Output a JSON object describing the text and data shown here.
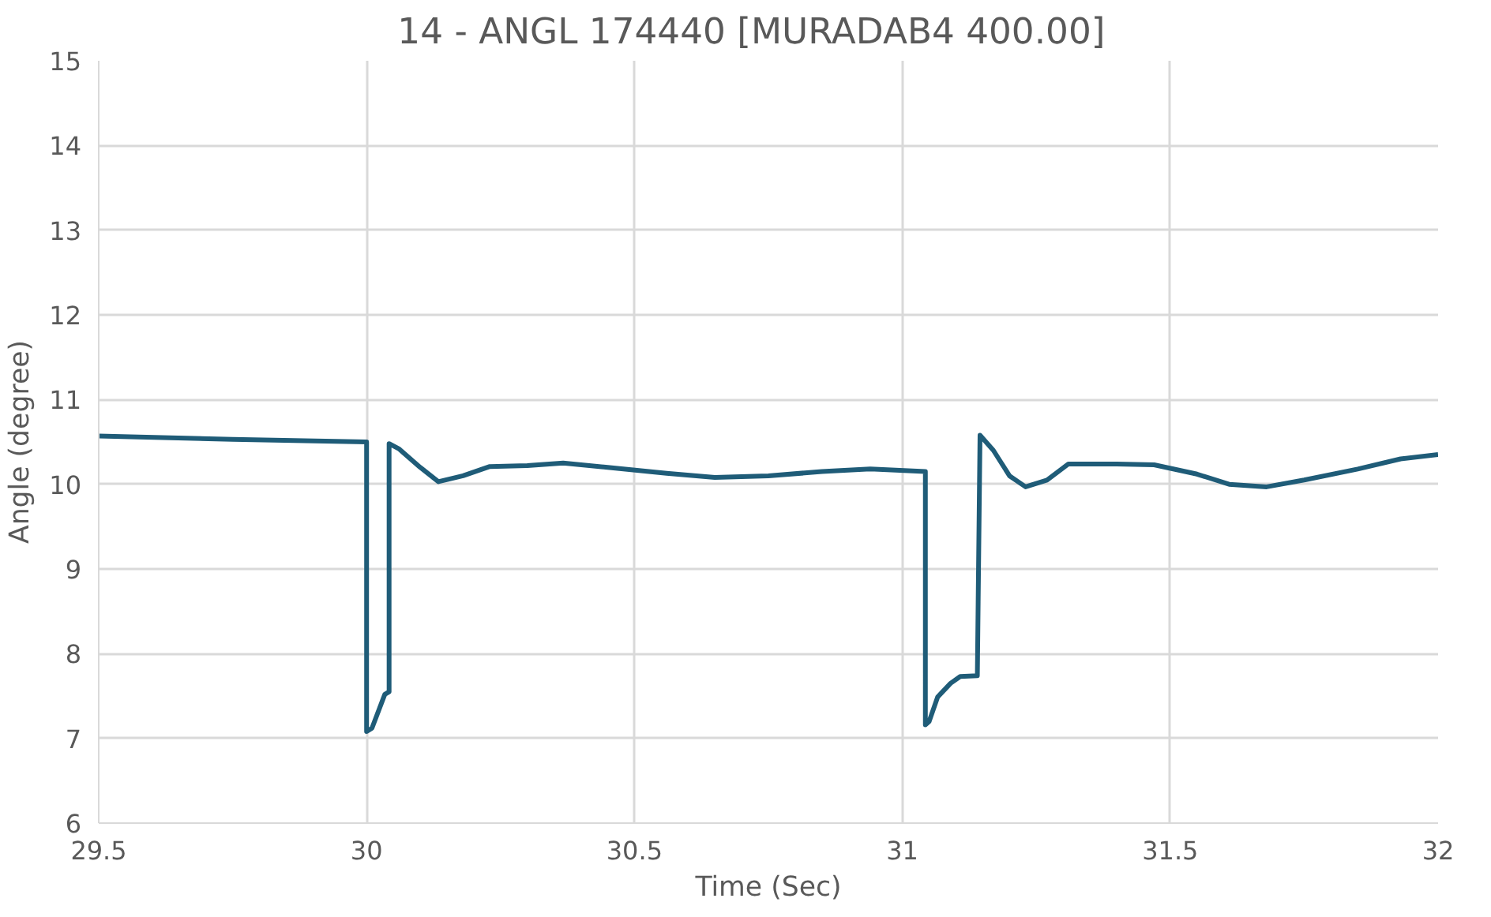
{
  "chart_data": {
    "type": "line",
    "title": "14 - ANGL 174440 [MURADAB4    400.00]",
    "xlabel": "Time (Sec)",
    "ylabel": "Angle (degree)",
    "series": [
      {
        "color": "#1f5c78",
        "x": [
          29.5,
          29.75,
          30.0,
          30.0,
          30.01,
          30.034,
          30.042,
          30.042,
          30.06,
          30.1,
          30.134,
          30.18,
          30.23,
          30.3,
          30.367,
          30.45,
          30.56,
          30.65,
          30.75,
          30.85,
          30.94,
          31.043,
          31.043,
          31.05,
          31.066,
          31.09,
          31.108,
          31.14,
          31.14,
          31.145,
          31.17,
          31.2,
          31.23,
          31.27,
          31.31,
          31.4,
          31.47,
          31.55,
          31.61,
          31.68,
          31.75,
          31.85,
          31.93,
          32.0
        ],
        "values": [
          10.57,
          10.53,
          10.5,
          7.08,
          7.12,
          7.52,
          7.55,
          10.48,
          10.42,
          10.2,
          10.03,
          10.1,
          10.21,
          10.22,
          10.25,
          10.2,
          10.13,
          10.08,
          10.1,
          10.15,
          10.18,
          10.15,
          7.16,
          7.2,
          7.49,
          7.65,
          7.73,
          7.74,
          7.74,
          10.58,
          10.4,
          10.1,
          9.97,
          10.05,
          10.24,
          10.24,
          10.23,
          10.12,
          10.0,
          9.97,
          10.05,
          10.18,
          10.3,
          10.35
        ]
      }
    ],
    "xlim": [
      29.5,
      32
    ],
    "xticks": [
      29.5,
      30,
      30.5,
      31,
      31.5,
      32
    ],
    "ylim": [
      6,
      15
    ],
    "yticks": [
      6,
      7,
      8,
      9,
      10,
      11,
      12,
      13,
      14,
      15
    ],
    "grid": true,
    "marker": "none",
    "line_style": "solid"
  }
}
